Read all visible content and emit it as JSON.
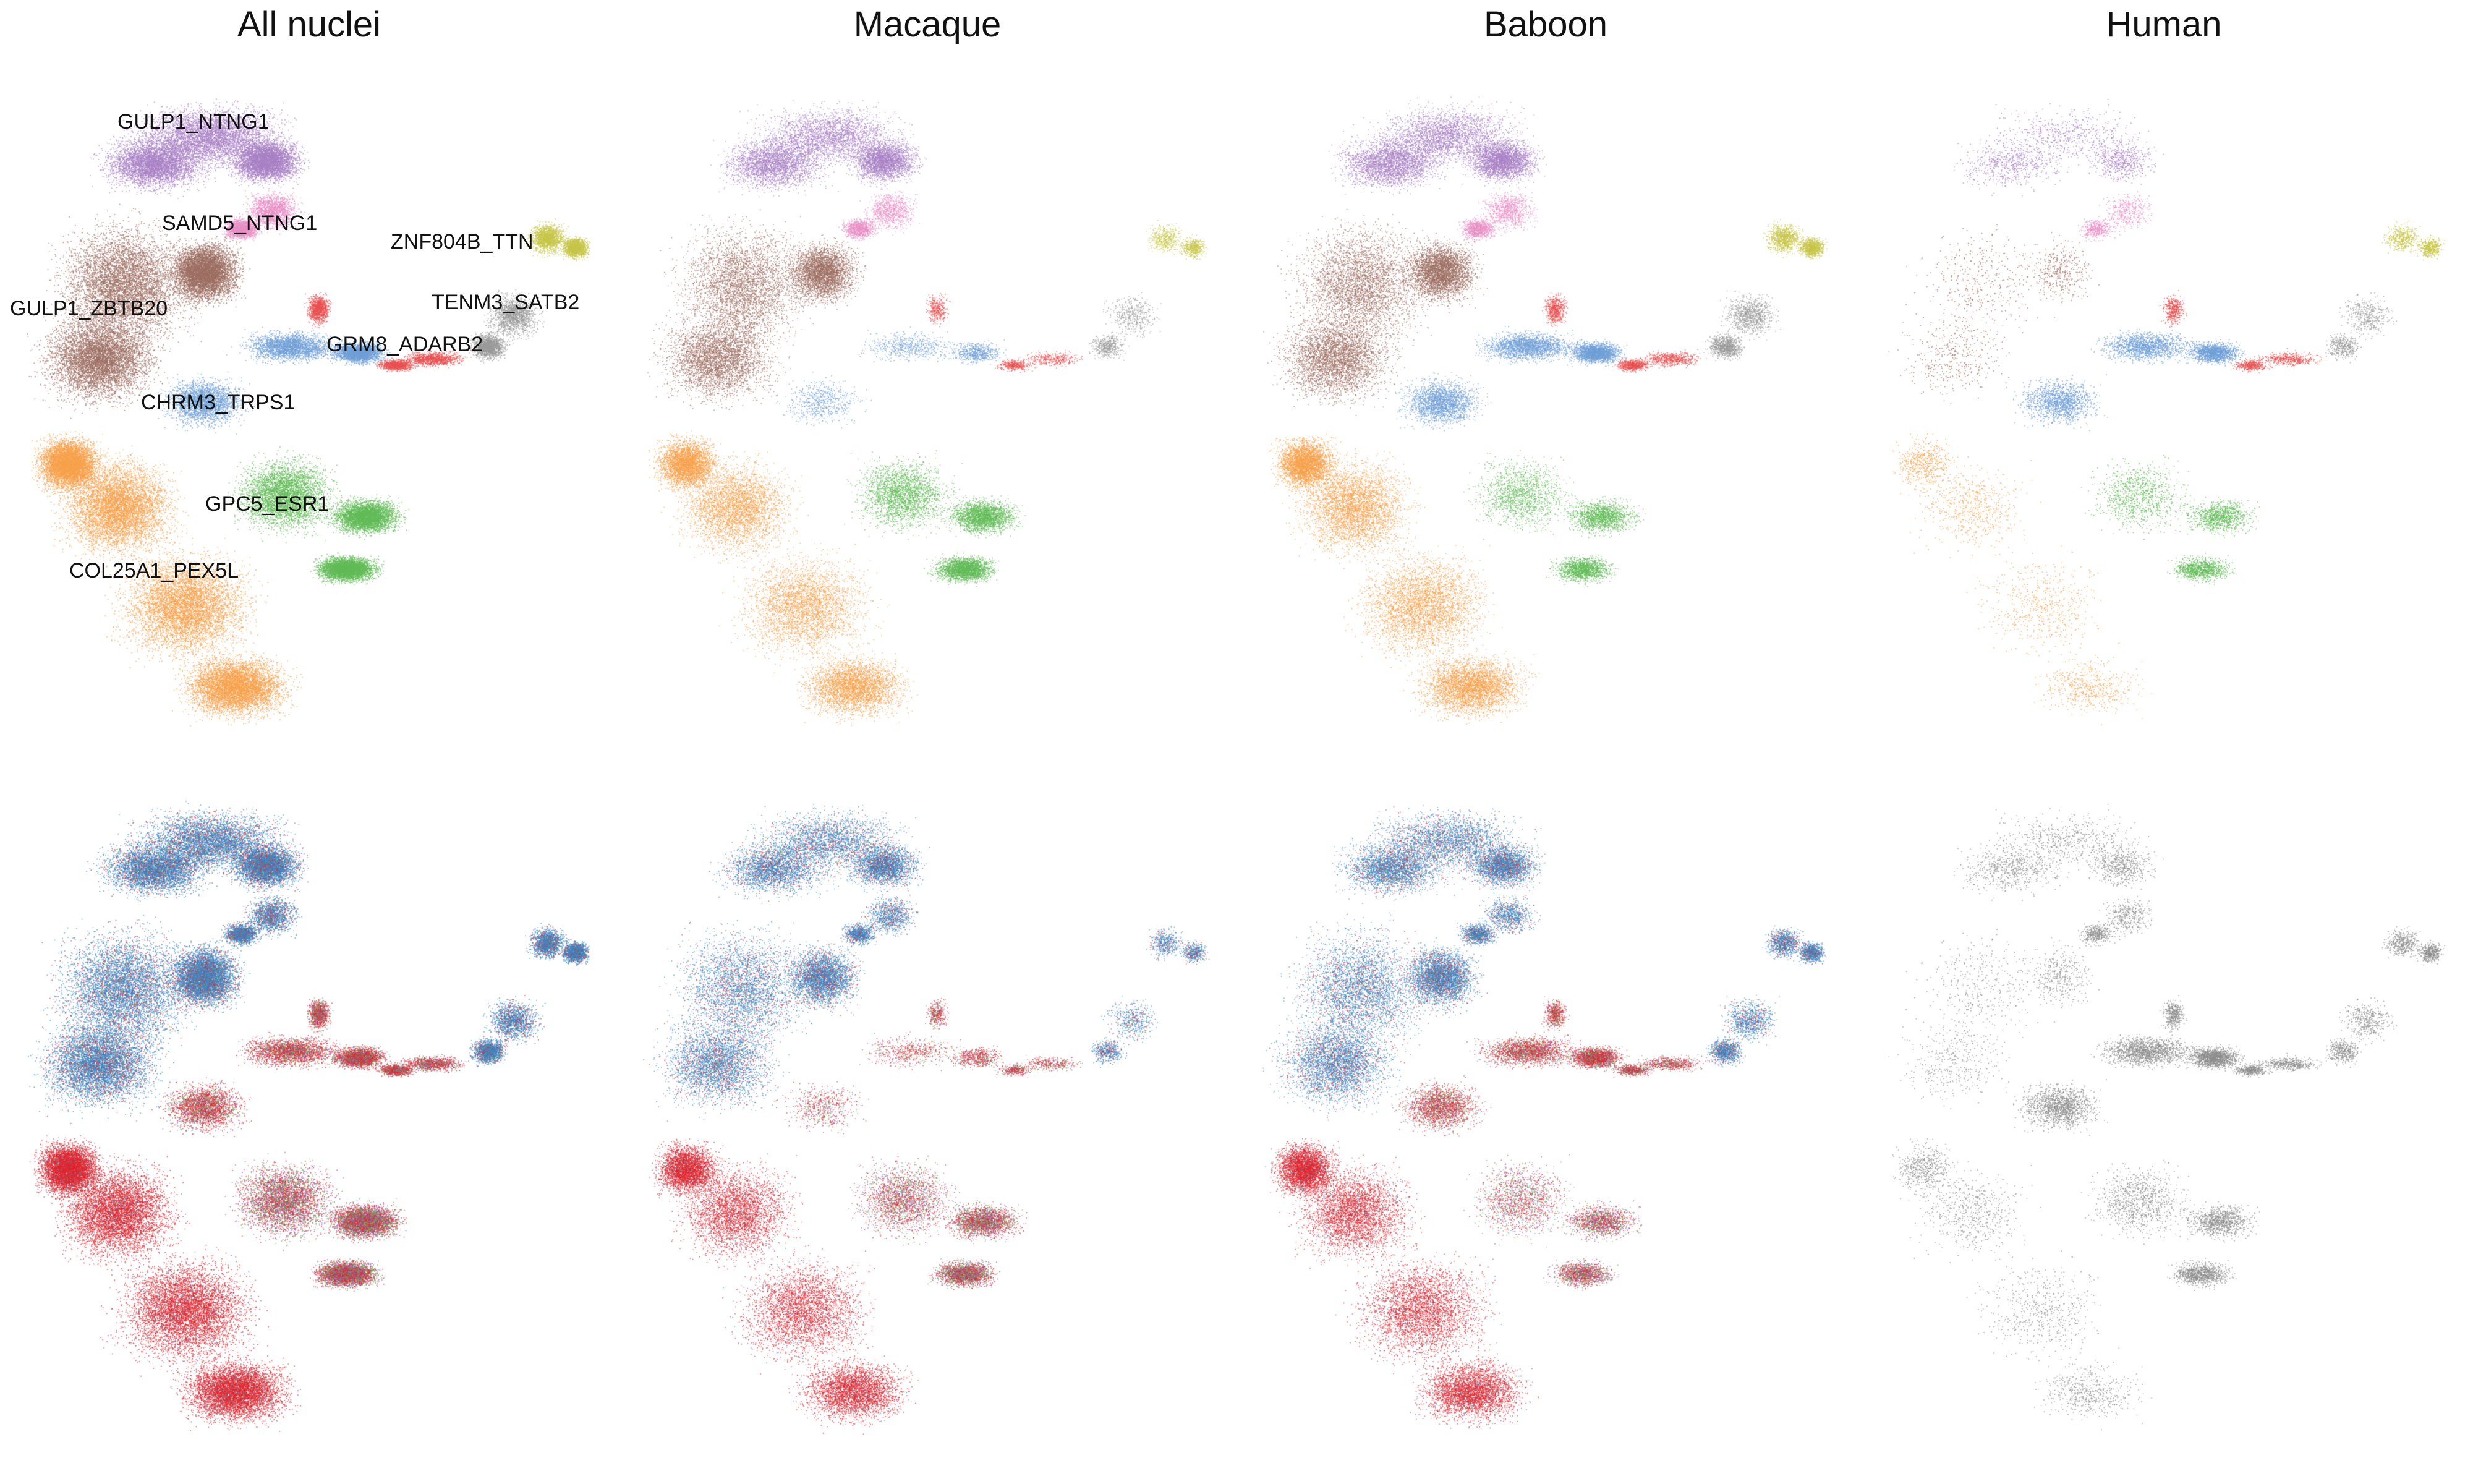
{
  "figure": {
    "titles": [
      "All nuclei",
      "Macaque",
      "Baboon",
      "Human"
    ]
  },
  "chart_data": {
    "type": "scatter",
    "panels": [
      {
        "row": "cluster",
        "title": "All nuclei",
        "dataset": "all"
      },
      {
        "row": "cluster",
        "title": "Macaque",
        "dataset": "macaque"
      },
      {
        "row": "cluster",
        "title": "Baboon",
        "dataset": "baboon"
      },
      {
        "row": "cluster",
        "title": "Human",
        "dataset": "human"
      },
      {
        "row": "condition",
        "title": "",
        "dataset": "all"
      },
      {
        "row": "condition",
        "title": "",
        "dataset": "macaque"
      },
      {
        "row": "condition",
        "title": "",
        "dataset": "baboon"
      },
      {
        "row": "condition",
        "title": "",
        "dataset": "human"
      }
    ],
    "clusters": [
      {
        "name": "GULP1_NTNG1",
        "color": "#a880c4"
      },
      {
        "name": "SAMD5_NTNG1",
        "color": "#e88fc6"
      },
      {
        "name": "GULP1_ZBTB20",
        "color": "#9c6d61"
      },
      {
        "name": "ZNF804B_TTN",
        "color": "#c7c548"
      },
      {
        "name": "TENM3_SATB2",
        "color": "#9a9a9a"
      },
      {
        "name": "GRM8_ADARB2",
        "color": "#e85252"
      },
      {
        "name": "CHRM3_TRPS1",
        "color": "#6f9fd6"
      },
      {
        "name": "GPC5_ESR1",
        "color": "#62bb57"
      },
      {
        "name": "COL25A1_PEX5L",
        "color": "#f7a24c"
      }
    ],
    "condition_colors": [
      "#3a86c6",
      "#e4232b",
      "#5db552",
      "#9a4faa",
      "#8d8d8d"
    ],
    "axes": "none",
    "grid": false,
    "legend": "none"
  }
}
